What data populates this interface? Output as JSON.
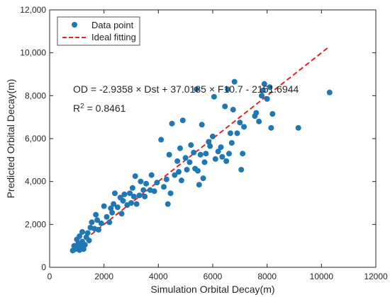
{
  "chart_data": {
    "type": "scatter",
    "title": "",
    "xlabel": "Simulation Orbital Decay(m)",
    "ylabel": "Predicted Orbital Decay(m)",
    "xlim": [
      0,
      12000
    ],
    "ylim": [
      0,
      12000
    ],
    "xticks": [
      0,
      2000,
      4000,
      6000,
      8000,
      10000,
      12000
    ],
    "yticks": [
      0,
      2000,
      4000,
      6000,
      8000,
      10000,
      12000
    ],
    "xtick_labels": [
      "0",
      "2000",
      "4000",
      "6000",
      "8000",
      "10000",
      "12000"
    ],
    "ytick_labels": [
      "0",
      "2,000",
      "4,000",
      "6,000",
      "8,000",
      "10,000",
      "12,000"
    ],
    "grid": false,
    "legend_position": "top-left",
    "series": [
      {
        "name": "Data point",
        "marker": "circle",
        "color": "#1f77b4",
        "points": [
          [
            850,
            780
          ],
          [
            900,
            1000
          ],
          [
            950,
            850
          ],
          [
            1000,
            900
          ],
          [
            1050,
            1100
          ],
          [
            1100,
            800
          ],
          [
            1150,
            950
          ],
          [
            1200,
            1200
          ],
          [
            1250,
            850
          ],
          [
            1300,
            1050
          ],
          [
            1000,
            1300
          ],
          [
            1100,
            1450
          ],
          [
            1200,
            1650
          ],
          [
            1350,
            1400
          ],
          [
            1400,
            1600
          ],
          [
            1450,
            1250
          ],
          [
            1500,
            1850
          ],
          [
            1550,
            2100
          ],
          [
            1650,
            1800
          ],
          [
            1700,
            2450
          ],
          [
            1750,
            2200
          ],
          [
            1800,
            1750
          ],
          [
            1900,
            2050
          ],
          [
            2000,
            2850
          ],
          [
            2100,
            2350
          ],
          [
            2200,
            2100
          ],
          [
            2250,
            2750
          ],
          [
            2300,
            2550
          ],
          [
            2350,
            2950
          ],
          [
            2400,
            3450
          ],
          [
            2500,
            2800
          ],
          [
            2600,
            3250
          ],
          [
            2650,
            2500
          ],
          [
            2700,
            3100
          ],
          [
            2750,
            3400
          ],
          [
            2850,
            2900
          ],
          [
            2950,
            3450
          ],
          [
            3000,
            3000
          ],
          [
            3050,
            3700
          ],
          [
            3100,
            3300
          ],
          [
            3150,
            4250
          ],
          [
            3200,
            2950
          ],
          [
            3300,
            3350
          ],
          [
            3350,
            4000
          ],
          [
            3450,
            3600
          ],
          [
            3500,
            3300
          ],
          [
            3550,
            3900
          ],
          [
            3700,
            3600
          ],
          [
            3750,
            4300
          ],
          [
            3850,
            3550
          ],
          [
            3950,
            3950
          ],
          [
            4100,
            5950
          ],
          [
            4200,
            3750
          ],
          [
            4300,
            4100
          ],
          [
            4350,
            2950
          ],
          [
            4400,
            5250
          ],
          [
            4450,
            3450
          ],
          [
            4500,
            6700
          ],
          [
            4600,
            4300
          ],
          [
            4700,
            4950
          ],
          [
            4750,
            4450
          ],
          [
            4800,
            5550
          ],
          [
            4850,
            4050
          ],
          [
            4900,
            6850
          ],
          [
            5000,
            5100
          ],
          [
            5050,
            4550
          ],
          [
            5150,
            4900
          ],
          [
            5200,
            5700
          ],
          [
            5300,
            5350
          ],
          [
            5350,
            4600
          ],
          [
            5400,
            8300
          ],
          [
            5450,
            4500
          ],
          [
            5500,
            3850
          ],
          [
            5550,
            5250
          ],
          [
            5600,
            6650
          ],
          [
            5650,
            4150
          ],
          [
            5700,
            4900
          ],
          [
            5750,
            5300
          ],
          [
            5850,
            5850
          ],
          [
            5900,
            5650
          ],
          [
            6000,
            6100
          ],
          [
            6050,
            7950
          ],
          [
            6100,
            5050
          ],
          [
            6200,
            5400
          ],
          [
            6300,
            5600
          ],
          [
            6350,
            5150
          ],
          [
            6450,
            7500
          ],
          [
            6500,
            4950
          ],
          [
            6550,
            8300
          ],
          [
            6600,
            5300
          ],
          [
            6650,
            6250
          ],
          [
            6700,
            5800
          ],
          [
            6750,
            7350
          ],
          [
            6800,
            8650
          ],
          [
            6900,
            6250
          ],
          [
            7000,
            6750
          ],
          [
            7050,
            4550
          ],
          [
            7100,
            5300
          ],
          [
            7150,
            6550
          ],
          [
            7550,
            7050
          ],
          [
            7600,
            7200
          ],
          [
            7700,
            6800
          ],
          [
            7800,
            8000
          ],
          [
            7850,
            8250
          ],
          [
            7900,
            8550
          ],
          [
            8000,
            7850
          ],
          [
            8100,
            8400
          ],
          [
            8150,
            6500
          ],
          [
            8200,
            7150
          ],
          [
            9150,
            6500
          ],
          [
            10300,
            8150
          ]
        ]
      },
      {
        "name": "Ideal fitting",
        "type": "line",
        "style": "dashed",
        "color": "#e62222",
        "points": [
          [
            850,
            850
          ],
          [
            10300,
            10300
          ]
        ]
      }
    ],
    "annotations": {
      "equation": "OD = -2.9358 × Dst + 37.0185 × F10.7 - 2151.6944",
      "r2_label": "R",
      "r2_exponent": "2",
      "r2_value": " = 0.8461"
    }
  }
}
